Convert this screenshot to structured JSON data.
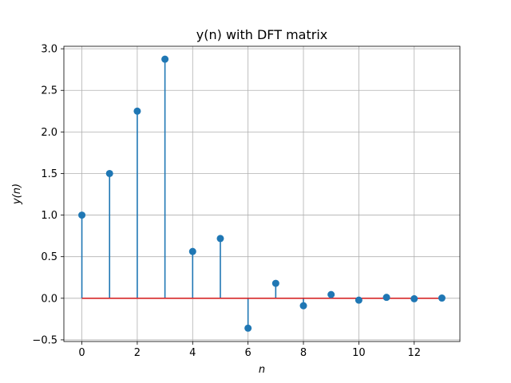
{
  "chart_data": {
    "type": "stem",
    "title": "y(n) with DFT matrix",
    "xlabel": "n",
    "ylabel": "y(n)",
    "x": [
      0,
      1,
      2,
      3,
      4,
      5,
      6,
      7,
      8,
      9,
      10,
      11,
      12,
      13
    ],
    "values": [
      1.0,
      1.5,
      2.25,
      2.875,
      0.5625,
      0.71875,
      -0.359375,
      0.1796875,
      -0.08984375,
      0.044921875,
      -0.0224609375,
      0.01123046875,
      -0.005615234375,
      0.0028076171875
    ],
    "xlim": [
      -0.65,
      13.65
    ],
    "ylim": [
      -0.52,
      3.03
    ],
    "xticks": [
      0,
      2,
      4,
      6,
      8,
      10,
      12
    ],
    "xtick_labels": [
      "0",
      "2",
      "4",
      "6",
      "8",
      "10",
      "12"
    ],
    "yticks": [
      -0.5,
      0.0,
      0.5,
      1.0,
      1.5,
      2.0,
      2.5,
      3.0
    ],
    "ytick_labels": [
      "−0.5",
      "0.0",
      "0.5",
      "1.0",
      "1.5",
      "2.0",
      "2.5",
      "3.0"
    ],
    "grid": true,
    "colors": {
      "stem": "#1f77b4",
      "baseline": "#d62728"
    }
  }
}
